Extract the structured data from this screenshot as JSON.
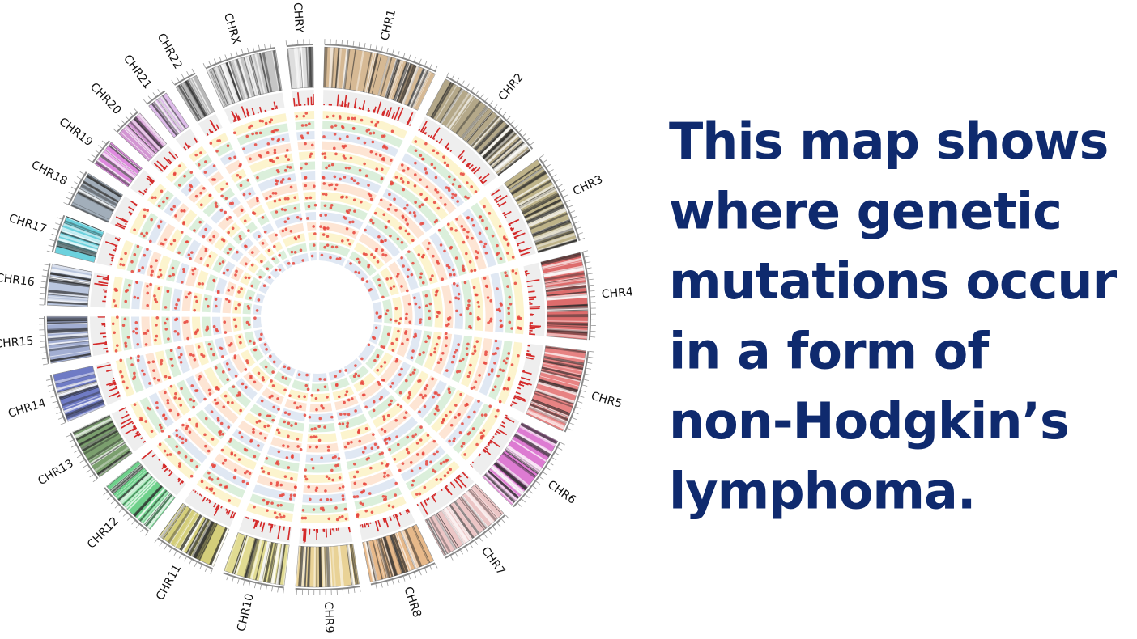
{
  "chromosomes": [
    {
      "label": "CHR1",
      "color": "#c9a271"
    },
    {
      "label": "CHR2",
      "color": "#9c8b62"
    },
    {
      "label": "CHR3",
      "color": "#a99a62"
    },
    {
      "label": "CHR4",
      "color": "#d23c3c"
    },
    {
      "label": "CHR5",
      "color": "#e05a5a"
    },
    {
      "label": "CHR6",
      "color": "#d24fc4"
    },
    {
      "label": "CHR7",
      "color": "#e6b4b4"
    },
    {
      "label": "CHR8",
      "color": "#e0a264"
    },
    {
      "label": "CHR9",
      "color": "#e2c474"
    },
    {
      "label": "CHR10",
      "color": "#d8d06e"
    },
    {
      "label": "CHR11",
      "color": "#c6be4e"
    },
    {
      "label": "CHR12",
      "color": "#3fc266"
    },
    {
      "label": "CHR13",
      "color": "#4f7f3e"
    },
    {
      "label": "CHR14",
      "color": "#3f4fb2"
    },
    {
      "label": "CHR15",
      "color": "#8493c4"
    },
    {
      "label": "CHR16",
      "color": "#a4b4d4"
    },
    {
      "label": "CHR17",
      "color": "#3cc2d2"
    },
    {
      "label": "CHR18",
      "color": "#8494a4"
    },
    {
      "label": "CHR19",
      "color": "#d462d4"
    },
    {
      "label": "CHR20",
      "color": "#c474c4"
    },
    {
      "label": "CHR21",
      "color": "#d4a6e4"
    },
    {
      "label": "CHR22",
      "color": "#a0a0a0"
    },
    {
      "label": "CHRX",
      "color": "#b2b2b2"
    },
    {
      "label": "CHRY",
      "color": "#d4d4d4"
    }
  ],
  "caption": [
    "This map shows",
    "where genetic",
    "mutations occur",
    "in a form of",
    "non-Hodgkin’s",
    "lymphoma."
  ]
}
